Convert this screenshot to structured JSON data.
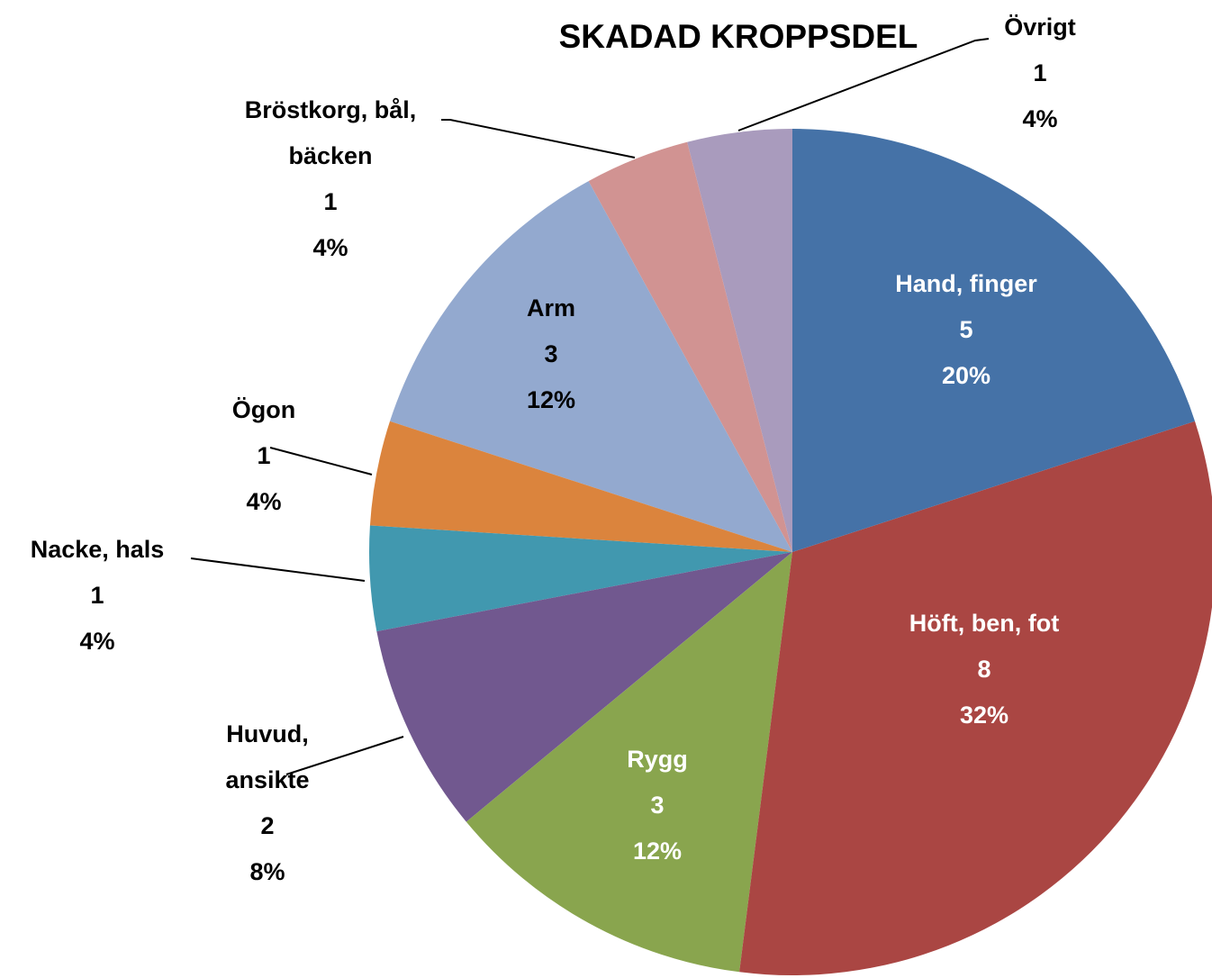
{
  "chart_data": {
    "type": "pie",
    "title": "SKADAD KROPPSDEL",
    "categories": [
      "Hand, finger",
      "Höft, ben, fot",
      "Rygg",
      "Huvud, ansikte",
      "Nacke, hals",
      "Ögon",
      "Arm",
      "Bröstkorg, bål, bäcken",
      "Övrigt"
    ],
    "values": [
      5,
      8,
      3,
      2,
      1,
      1,
      3,
      1,
      1
    ],
    "percent_labels": [
      "20%",
      "32%",
      "12%",
      "8%",
      "4%",
      "4%",
      "12%",
      "4%",
      "4%"
    ],
    "colors": [
      "#4572a7",
      "#aa4643",
      "#89a54e",
      "#71588f",
      "#4198af",
      "#db843d",
      "#93a9cf",
      "#d19392",
      "#a99bbd"
    ]
  }
}
